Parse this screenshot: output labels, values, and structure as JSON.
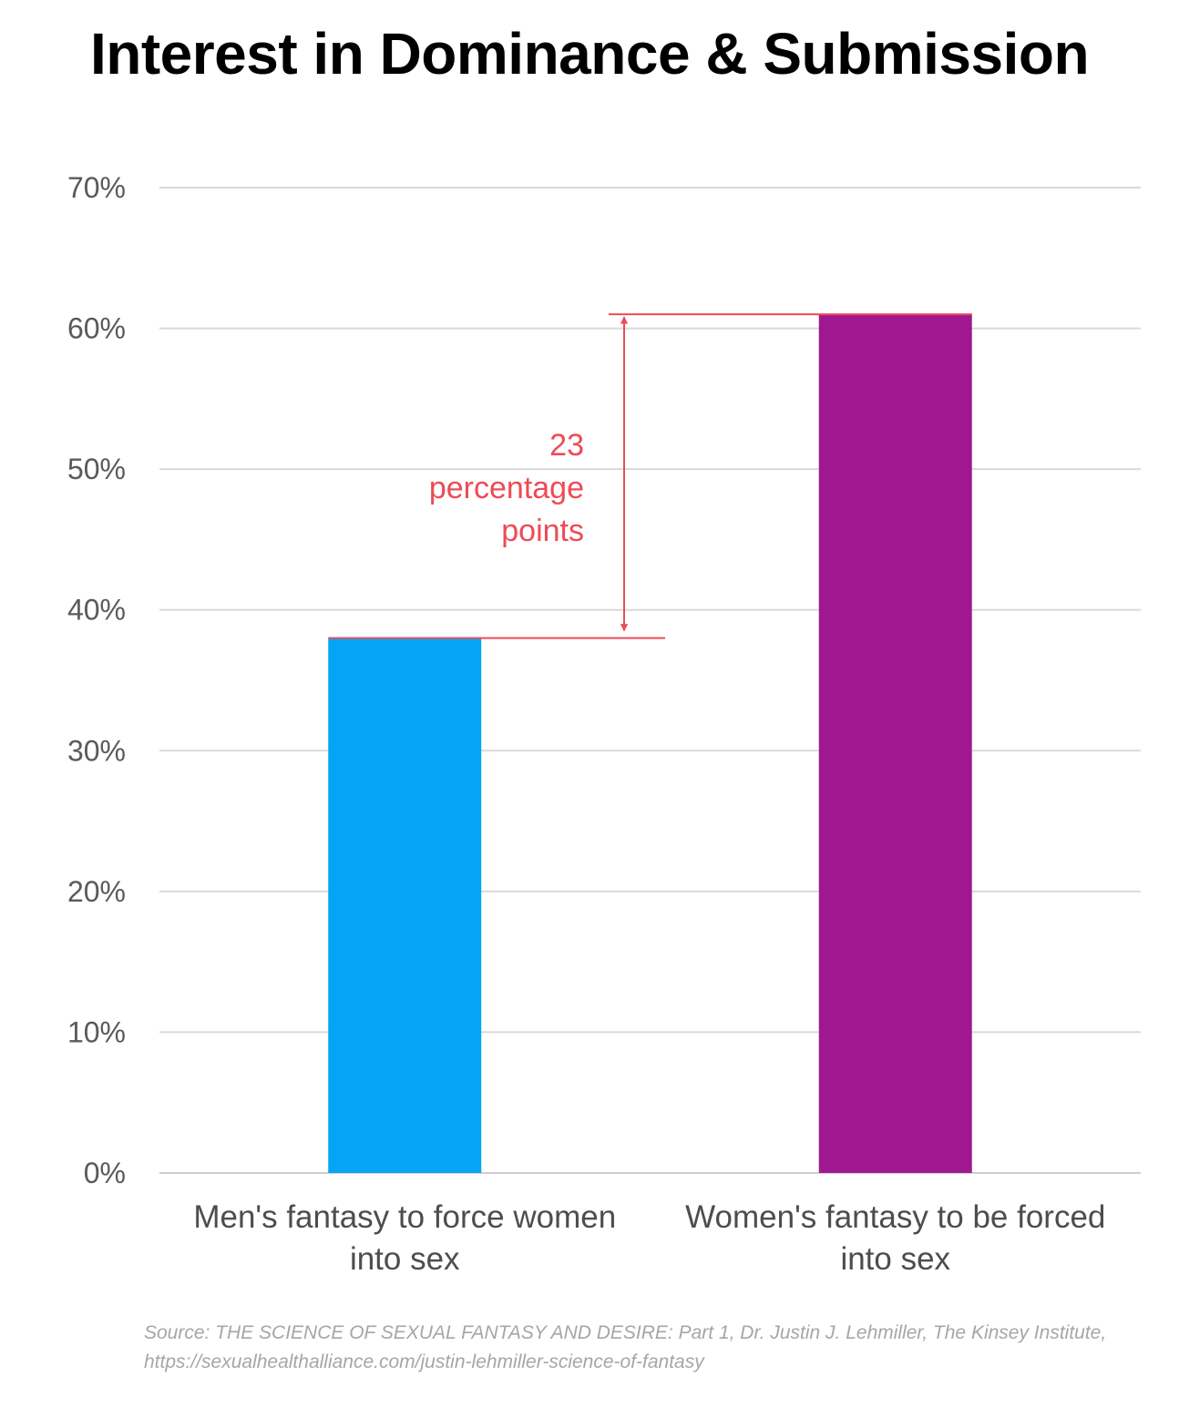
{
  "chart_data": {
    "type": "bar",
    "title": "Interest in Dominance & Submission",
    "categories": [
      "Men's fantasy to force women into sex",
      "Women's fantasy to be forced into sex"
    ],
    "category_lines": [
      [
        "Men's fantasy to force women",
        "into sex"
      ],
      [
        "Women's fantasy to be forced",
        "into sex"
      ]
    ],
    "values": [
      38,
      61
    ],
    "bar_colors": [
      "#06a4f6",
      "#a0188f"
    ],
    "ylim": [
      0,
      70
    ],
    "y_ticks": [
      0,
      10,
      20,
      30,
      40,
      50,
      60,
      70
    ],
    "y_tick_labels": [
      "0%",
      "10%",
      "20%",
      "30%",
      "40%",
      "50%",
      "60%",
      "70%"
    ],
    "xlabel": "",
    "ylabel": "",
    "grid": true,
    "legend": "none",
    "annotation": {
      "lines": [
        "23",
        "percentage",
        "points"
      ],
      "from_value": 38,
      "to_value": 61,
      "color": "#ee4b55"
    }
  },
  "source": "Source:  THE SCIENCE OF SEXUAL FANTASY AND DESIRE: Part 1, Dr. Justin J. Lehmiller, The Kinsey Institute, https://sexualhealthalliance.com/justin-lehmiller-science-of-fantasy"
}
